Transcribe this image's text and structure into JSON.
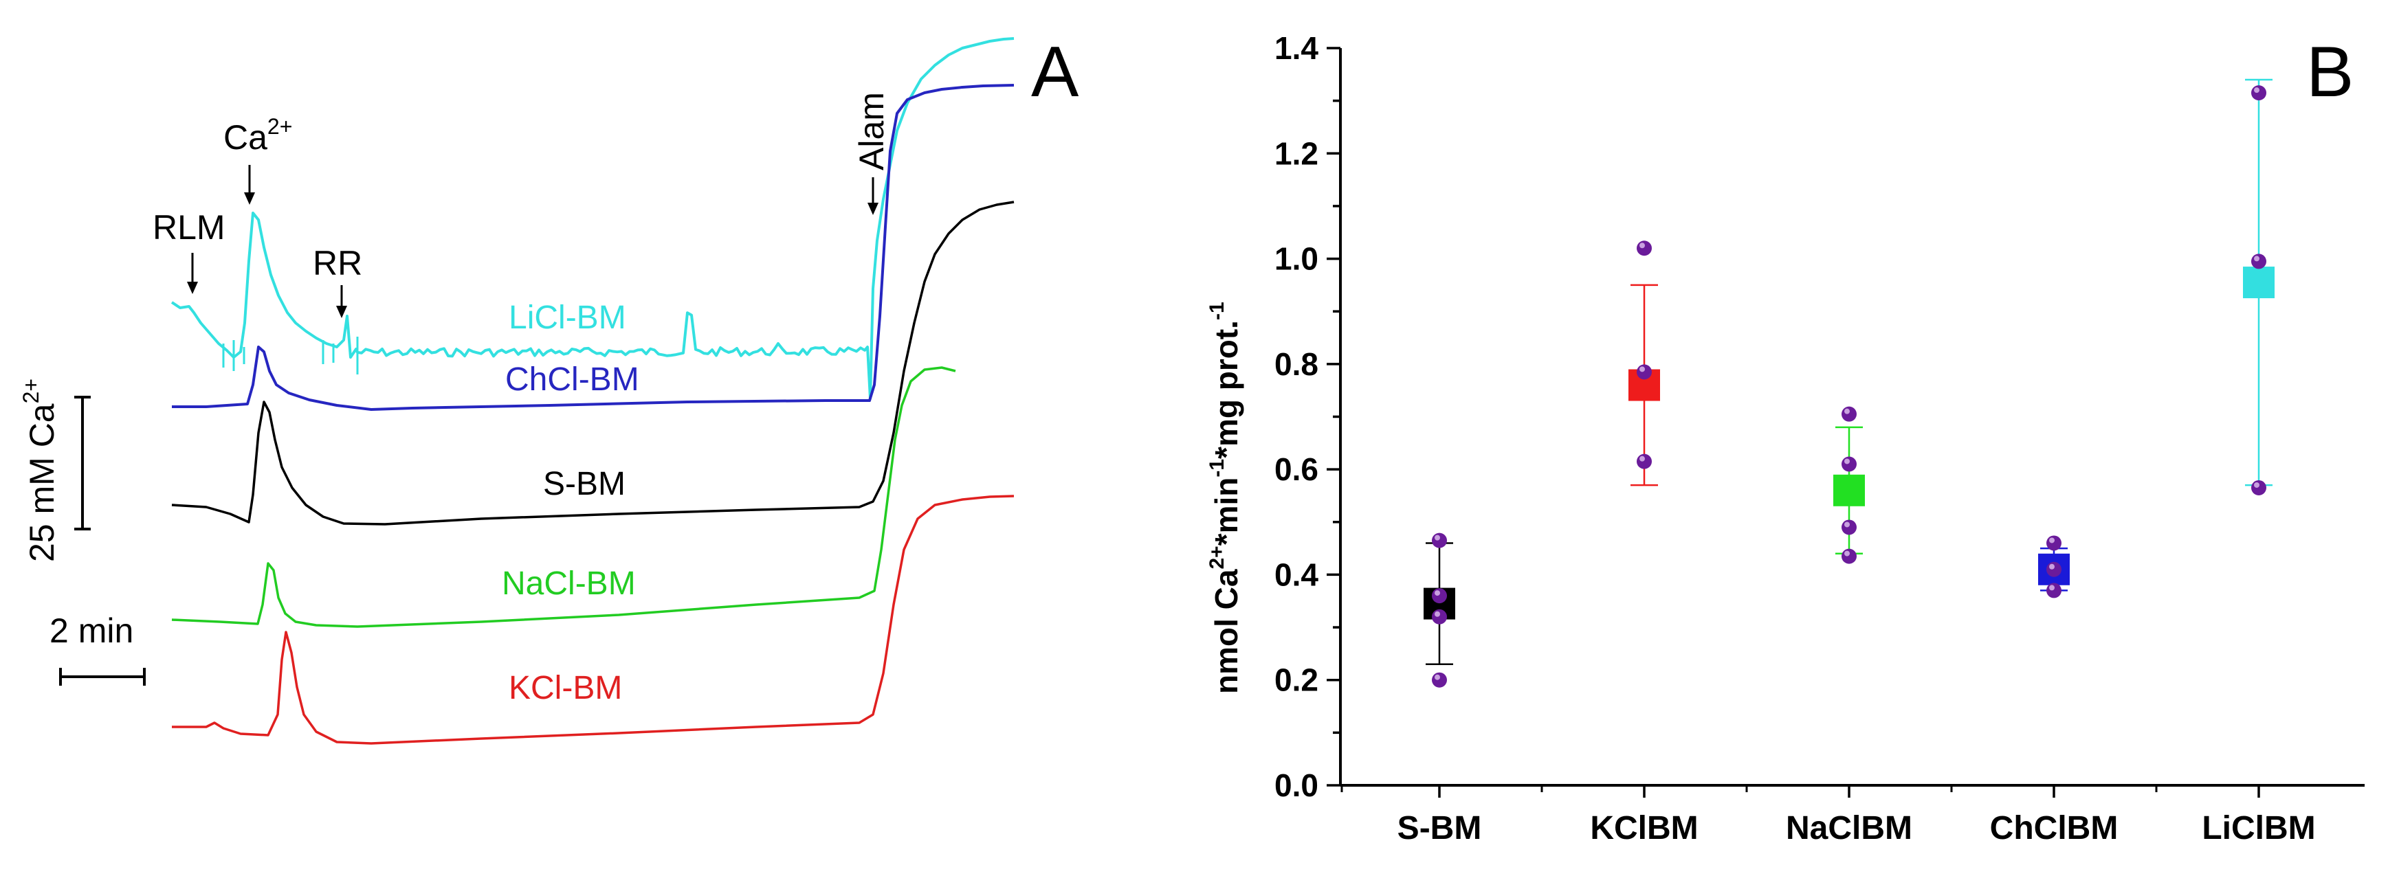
{
  "chart_data": [
    {
      "panel": "A",
      "type": "line",
      "title": "",
      "series": [
        {
          "name": "LiCl-BM",
          "color": "#33e0e0"
        },
        {
          "name": "ChCl-BM",
          "color": "#2626c0"
        },
        {
          "name": "S-BM",
          "color": "#000000"
        },
        {
          "name": "NaCl-BM",
          "color": "#22cc22"
        },
        {
          "name": "KCl-BM",
          "color": "#e02020"
        }
      ],
      "annotations": [
        "RLM",
        "Ca2+",
        "RR",
        "Alam"
      ],
      "scale_bars": {
        "y": "25 mM Ca2+",
        "x": "2 min"
      }
    },
    {
      "panel": "B",
      "type": "scatter",
      "categories": [
        "S-BM",
        "KClBM",
        "NaClBM",
        "ChClBM",
        "LiClBM"
      ],
      "series": [
        {
          "name": "S-BM",
          "color": "#000000",
          "mean": 0.345,
          "sd_low": 0.23,
          "sd_high": 0.46,
          "points": [
            0.465,
            0.36,
            0.32,
            0.2
          ]
        },
        {
          "name": "KClBM",
          "color": "#ee1c1c",
          "mean": 0.76,
          "sd_low": 0.57,
          "sd_high": 0.95,
          "points": [
            1.02,
            0.785,
            0.615
          ]
        },
        {
          "name": "NaClBM",
          "color": "#22e022",
          "mean": 0.56,
          "sd_low": 0.44,
          "sd_high": 0.68,
          "points": [
            0.705,
            0.61,
            0.49,
            0.435
          ]
        },
        {
          "name": "ChClBM",
          "color": "#1a1ad8",
          "mean": 0.41,
          "sd_low": 0.37,
          "sd_high": 0.45,
          "points": [
            0.46,
            0.41,
            0.37
          ]
        },
        {
          "name": "LiClBM",
          "color": "#33dfe0",
          "mean": 0.955,
          "sd_low": 0.57,
          "sd_high": 1.34,
          "points": [
            1.315,
            0.995,
            0.565
          ]
        }
      ],
      "point_color": "#6a1b9a",
      "ylabel": "nmol Ca2+*min-1*mg prot.-1",
      "ylim": [
        0,
        1.4
      ],
      "yticks": [
        "0.0",
        "0.2",
        "0.4",
        "0.6",
        "0.8",
        "1.0",
        "1.2",
        "1.4"
      ],
      "grid": false
    }
  ]
}
